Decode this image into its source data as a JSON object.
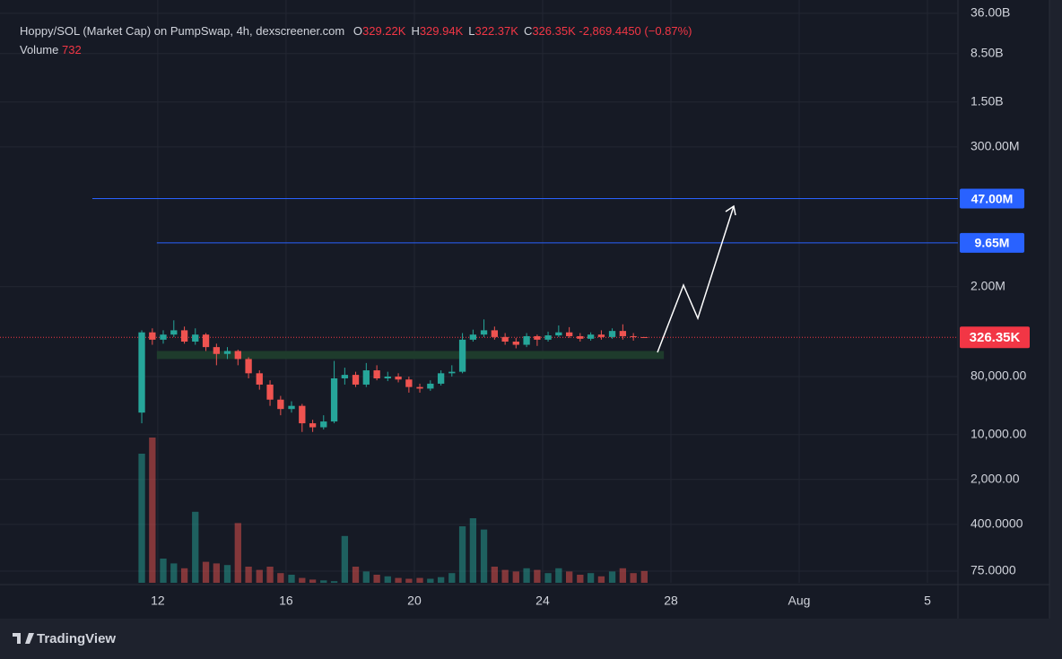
{
  "chart_data": {
    "type": "candlestick",
    "title": "Hoppy/SOL (Market Cap) on PumpSwap, 4h, dexscreener.com",
    "ohlc_legend": [
      {
        "key": "O",
        "label": "329.22K"
      },
      {
        "key": "H",
        "label": "329.94K"
      },
      {
        "key": "L",
        "label": "322.37K"
      },
      {
        "key": "C",
        "label": "326.35K"
      }
    ],
    "change_label": "-2,869.4450 (−0.87%)",
    "volume_name": "Volume",
    "volume_label": "732",
    "brand": "TradingView",
    "x": [
      11.5,
      11.83,
      12.17,
      12.5,
      12.83,
      13.17,
      13.5,
      13.83,
      14.17,
      14.5,
      14.83,
      15.17,
      15.5,
      15.83,
      16.17,
      16.5,
      16.83,
      17.17,
      17.5,
      17.83,
      18.17,
      18.5,
      18.83,
      19.17,
      19.5,
      19.83,
      20.17,
      20.5,
      20.83,
      21.17,
      21.5,
      21.83,
      22.17,
      22.5,
      22.83,
      23.17,
      23.5,
      23.83,
      24.17,
      24.5,
      24.83,
      25.17,
      25.5,
      25.83,
      26.17,
      26.5,
      26.83,
      27.17
    ],
    "open": [
      22000,
      390000,
      300000,
      360000,
      420000,
      280000,
      360000,
      230000,
      180000,
      200000,
      150000,
      90000,
      60000,
      35000,
      25000,
      28000,
      15000,
      13000,
      16000,
      75000,
      85000,
      60000,
      100000,
      75000,
      80000,
      72000,
      55000,
      52000,
      62000,
      90000,
      95000,
      300000,
      360000,
      420000,
      330000,
      280000,
      250000,
      340000,
      300000,
      350000,
      390000,
      340000,
      310000,
      360000,
      330000,
      410000,
      340000,
      329220
    ],
    "high": [
      420000,
      450000,
      420000,
      600000,
      480000,
      450000,
      380000,
      260000,
      230000,
      210000,
      160000,
      100000,
      70000,
      40000,
      33000,
      30000,
      17000,
      20000,
      140000,
      110000,
      95000,
      130000,
      120000,
      95000,
      90000,
      80000,
      62000,
      70000,
      100000,
      120000,
      380000,
      430000,
      620000,
      480000,
      380000,
      320000,
      380000,
      360000,
      400000,
      500000,
      470000,
      380000,
      390000,
      420000,
      450000,
      520000,
      380000,
      329940
    ],
    "low": [
      15000,
      250000,
      260000,
      330000,
      260000,
      250000,
      200000,
      120000,
      150000,
      120000,
      75000,
      50000,
      28000,
      20000,
      22000,
      11000,
      11000,
      12000,
      15000,
      60000,
      55000,
      55000,
      70000,
      68000,
      65000,
      45000,
      45000,
      48000,
      58000,
      80000,
      90000,
      280000,
      330000,
      300000,
      250000,
      220000,
      230000,
      240000,
      280000,
      330000,
      320000,
      280000,
      290000,
      300000,
      310000,
      300000,
      290000,
      322370
    ],
    "close": [
      390000,
      300000,
      360000,
      420000,
      280000,
      360000,
      230000,
      180000,
      200000,
      150000,
      90000,
      60000,
      35000,
      25000,
      28000,
      15000,
      13000,
      16000,
      75000,
      85000,
      60000,
      100000,
      75000,
      80000,
      72000,
      55000,
      52000,
      62000,
      90000,
      95000,
      300000,
      360000,
      420000,
      330000,
      280000,
      250000,
      340000,
      300000,
      350000,
      390000,
      340000,
      310000,
      360000,
      330000,
      410000,
      340000,
      329220,
      326350
    ],
    "volume": [
      8000,
      9000,
      1500,
      1200,
      900,
      4400,
      1300,
      1200,
      1100,
      3700,
      1000,
      800,
      1000,
      600,
      500,
      300,
      200,
      150,
      100,
      2900,
      1000,
      700,
      500,
      400,
      300,
      250,
      300,
      250,
      350,
      600,
      3500,
      4000,
      3300,
      1000,
      800,
      700,
      900,
      800,
      600,
      900,
      700,
      500,
      600,
      400,
      700,
      900,
      600,
      732
    ],
    "volume_ylim": [
      0,
      10000
    ],
    "colors": {
      "up": "#26a69a",
      "down": "#ef5350"
    },
    "xlim": [
      7.08,
      36.95
    ],
    "xticks": [
      12,
      16,
      20,
      24,
      {
        "value": 28,
        "label": "28"
      },
      {
        "value": 32,
        "label": "Aug"
      },
      {
        "value": 36,
        "label": "5"
      }
    ],
    "log_scale": true,
    "ylim": [
      49.4,
      58000000000
    ],
    "yticks": [
      {
        "value": 36000000000,
        "label": "36.00B"
      },
      {
        "value": 8500000000,
        "label": "8.50B"
      },
      {
        "value": 1500000000,
        "label": "1.50B"
      },
      {
        "value": 300000000,
        "label": "300.00M"
      },
      {
        "value": 2000000,
        "label": "2.00M"
      },
      {
        "value": 80000,
        "label": "80,000.00"
      },
      {
        "value": 10000,
        "label": "10,000.00"
      },
      {
        "value": 2000,
        "label": "2,000.00"
      },
      {
        "value": 400,
        "label": "400.0000"
      },
      {
        "value": 75,
        "label": "75.0000"
      }
    ],
    "grid": true,
    "price_lines": [
      {
        "value": 47000000,
        "label": "47.00M",
        "color": "#2962ff",
        "x_start": 9.96
      },
      {
        "value": 9650000,
        "label": "9.65M",
        "color": "#2962ff",
        "x_start": 11.97
      }
    ],
    "last_price": {
      "value": 326350,
      "label": "326.35K",
      "color": "#f23645"
    },
    "zone": {
      "low": 150000,
      "high": 200000,
      "x_start": 11.97,
      "x_end": 27.78,
      "color": "#1e3b2c"
    }
  }
}
